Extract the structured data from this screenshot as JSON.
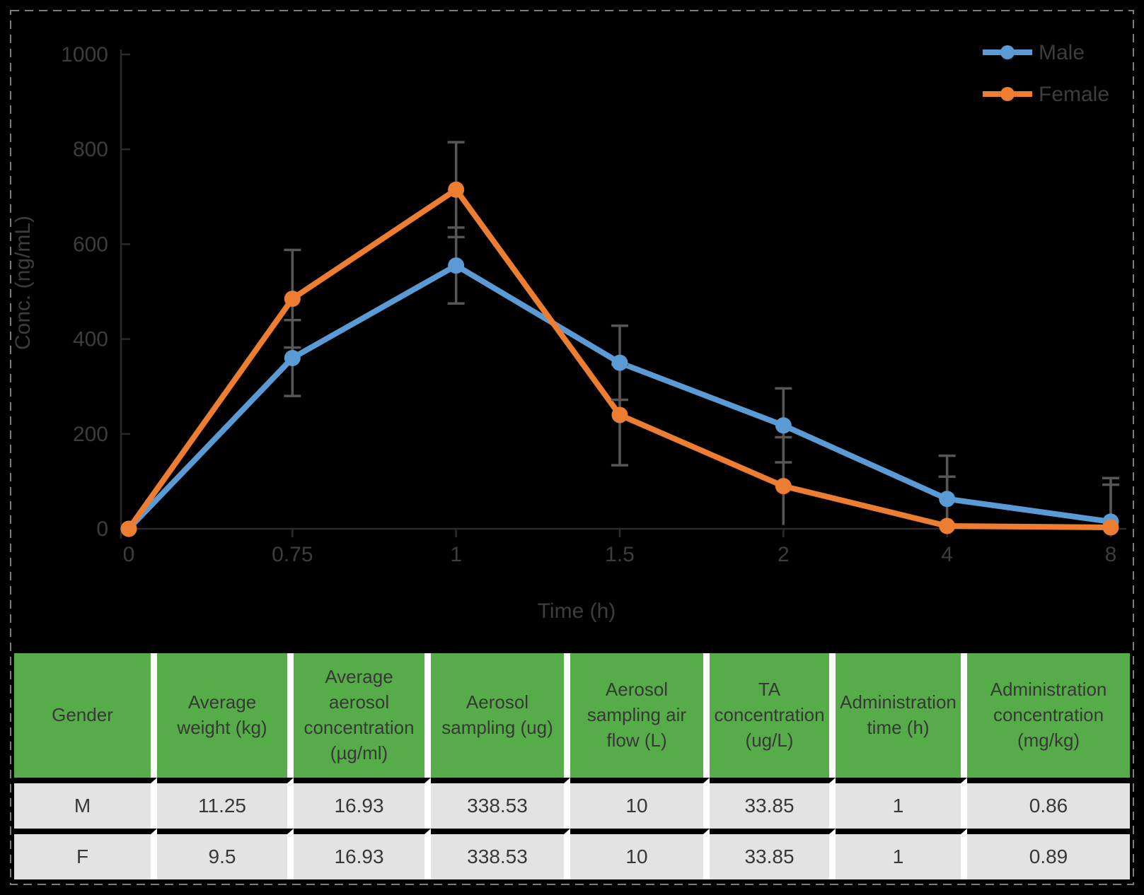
{
  "chart_data": {
    "type": "line",
    "title": "",
    "x_categories": [
      "0",
      "0.75",
      "1",
      "1.5",
      "2",
      "4",
      "8"
    ],
    "series": [
      {
        "name": "Male",
        "color": "#5B9BD5",
        "values": [
          0,
          360,
          555,
          350,
          218,
          63,
          15
        ],
        "errors": [
          0,
          80,
          80,
          78,
          78,
          91,
          92
        ]
      },
      {
        "name": "Female",
        "color": "#ED7D31",
        "values": [
          0,
          485,
          715,
          240,
          90,
          6,
          3
        ],
        "errors": [
          0,
          103,
          100,
          106,
          103,
          104,
          90
        ]
      }
    ],
    "xlabel": "Time (h)",
    "ylabel": "Conc. (ng/mL)",
    "y_ticks": [
      0,
      200,
      400,
      600,
      800,
      1000
    ],
    "ylim": [
      0,
      1000
    ],
    "grid": false,
    "legend_position": "top-right",
    "error_bar_color": "#565656",
    "axis_color": "#2b2b2b",
    "label_color": "#3d3d3d"
  },
  "table": {
    "header_bg": "#56AC48",
    "row_bg": "#E4E3E3",
    "headers": [
      "Gender",
      "Average weight (kg)",
      "Average aerosol concentration (µg/ml)",
      "Aerosol sampling (ug)",
      "Aerosol sampling air flow (L)",
      "TA concentration (ug/L)",
      "Administration time (h)",
      "Administration concentration (mg/kg)"
    ],
    "rows": [
      [
        "M",
        "11.25",
        "16.93",
        "338.53",
        "10",
        "33.85",
        "1",
        "0.86"
      ],
      [
        "F",
        "9.5",
        "16.93",
        "338.53",
        "10",
        "33.85",
        "1",
        "0.89"
      ]
    ]
  },
  "border": {
    "color": "#7d7d7d"
  }
}
